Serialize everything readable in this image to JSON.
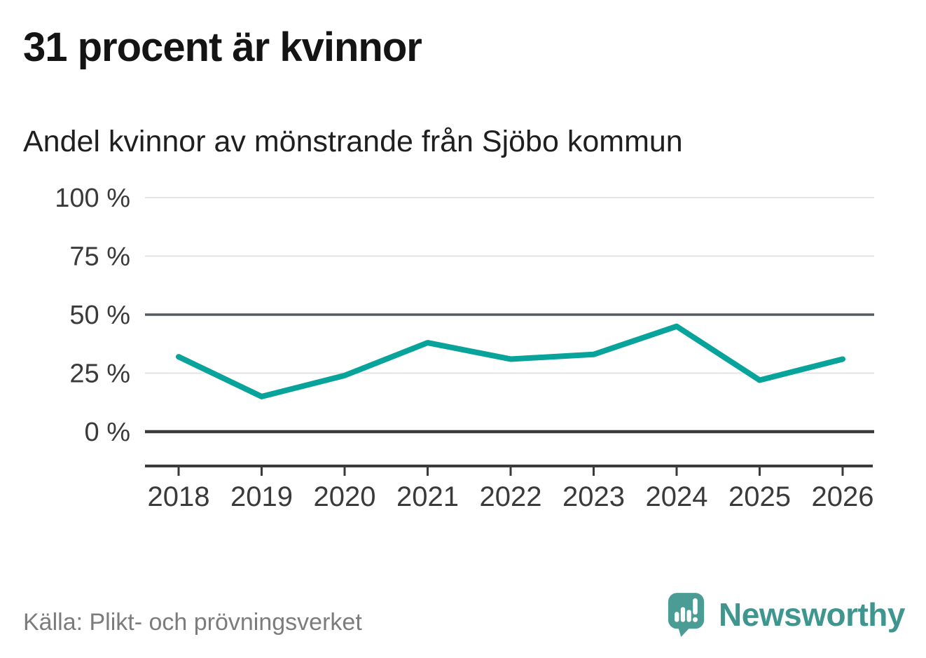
{
  "page": {
    "title": "31 procent är kvinnor",
    "subtitle": "Andel kvinnor av mönstrande från Sjöbo kommun",
    "source": "Källa: Plikt- och prövningsverket",
    "brand": "Newsworthy"
  },
  "colors": {
    "line": "#08a39a",
    "grid_light": "#e3e3e3",
    "grid_mid": "#55585e",
    "grid_zero": "#3c3c3c",
    "axis": "#3a3a3a",
    "tick_label": "#3a3a3a",
    "logo_bubble": "#4a9c95",
    "brand_text": "#3f968f"
  },
  "chart_data": {
    "type": "line",
    "title": "31 procent är kvinnor",
    "subtitle": "Andel kvinnor av mönstrande från Sjöbo kommun",
    "x": [
      2018,
      2019,
      2020,
      2021,
      2022,
      2023,
      2024,
      2025,
      2026
    ],
    "series": [
      {
        "name": "Andel kvinnor av mönstrande",
        "values": [
          32,
          15,
          24,
          38,
          31,
          33,
          45,
          22,
          31
        ]
      }
    ],
    "unit": "%",
    "xlabel": "",
    "ylabel": "",
    "ylim": [
      0,
      100
    ],
    "yticks": [
      {
        "value": 0,
        "label": "0 %",
        "emphasis": "zero"
      },
      {
        "value": 25,
        "label": "25 %",
        "emphasis": "light"
      },
      {
        "value": 50,
        "label": "50 %",
        "emphasis": "mid"
      },
      {
        "value": 75,
        "label": "75 %",
        "emphasis": "light"
      },
      {
        "value": 100,
        "label": "100 %",
        "emphasis": "light"
      }
    ],
    "grid": "horizontal",
    "legend": "none",
    "line_color": "#08a39a"
  }
}
